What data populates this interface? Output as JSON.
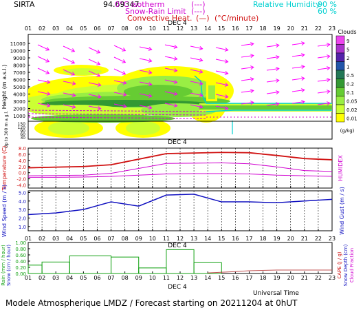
{
  "header": {
    "station": "SIRTA",
    "coords": "94.69347",
    "legend_isotherm": "0°C isotherm",
    "legend_isotherm_marker": "(---)",
    "legend_snow": "Snow-Rain Limit",
    "legend_snow_marker": "(---)",
    "legend_conv": "Convective Heat.",
    "legend_conv_marker": "(—)",
    "legend_conv_unit": "(°C/minute)",
    "legend_rh": "Relative Humidity",
    "rh_90": "90 %",
    "rh_60": "60 %"
  },
  "footer": {
    "text": "Modele Atmospherique LMDZ / Forecast starting on 20211204 at 0hUT",
    "universal_time": "Universal Time",
    "date_label": "DEC  4"
  },
  "colors": {
    "temperature": "#d01010",
    "humidex": "#d000d0",
    "wind": "#1010c0",
    "rain": "#10a010",
    "cape": "#c05050",
    "wind_arrow": "#ff00ff",
    "rh": "#00d0d0"
  },
  "clouds_scale": {
    "title": "Clouds",
    "unit": "(g/kg)",
    "levels": [
      "0.01",
      "0.02",
      "0.05",
      "0.1",
      "0.2",
      "0.5",
      "1",
      "2",
      "5",
      "9"
    ],
    "colors": [
      "#ffff00",
      "#ccff33",
      "#99ee44",
      "#66cc33",
      "#339933",
      "#227755",
      "#2255aa",
      "#5522aa",
      "#aa33cc",
      "#ee44ee"
    ]
  },
  "chart_data": [
    {
      "type": "heatmap",
      "name": "clouds",
      "ylabel": "Height (m a.s.l.)",
      "ylabel2": "Up to 300 m a.g.l.",
      "x_hours": [
        "01",
        "02",
        "03",
        "04",
        "05",
        "06",
        "07",
        "08",
        "09",
        "10",
        "11",
        "12",
        "13",
        "14",
        "15",
        "16",
        "17",
        "18",
        "19",
        "20",
        "21",
        "22",
        "23"
      ],
      "y_ticks": [
        "11000",
        "10000",
        "9000",
        "8000",
        "7000",
        "6000",
        "5000",
        "4000",
        "3000",
        "2000",
        "1000"
      ],
      "y_ticks_low": [
        "150",
        "120",
        "90",
        "60",
        "30"
      ]
    },
    {
      "type": "line",
      "name": "temperature",
      "ylabel": "Temperature (C)",
      "ylabel2": "HUMIDEX",
      "y_ticks": [
        "8.0",
        "6.0",
        "4.0",
        "2.0",
        "0.0",
        "-2.0",
        "-4.0"
      ],
      "ylim": [
        -5,
        8
      ],
      "series": [
        {
          "name": "Temperature",
          "x": [
            1,
            3,
            5,
            7,
            9,
            11,
            13,
            15,
            17,
            19,
            21,
            23
          ],
          "values": [
            1.6,
            1.8,
            2.0,
            2.6,
            4.4,
            6.2,
            6.4,
            6.6,
            6.5,
            5.6,
            4.6,
            4.2
          ]
        },
        {
          "name": "Humidex",
          "x": [
            1,
            3,
            5,
            7,
            9,
            11,
            13,
            15,
            17,
            19,
            21,
            23
          ],
          "values": [
            -1.0,
            -0.9,
            -0.8,
            -0.2,
            1.4,
            3.0,
            3.1,
            3.2,
            2.9,
            1.9,
            0.7,
            0.4
          ]
        },
        {
          "name": "",
          "x": [
            1,
            3,
            5,
            7,
            9,
            11,
            13,
            15,
            17,
            19,
            21,
            23
          ],
          "values": [
            -1.5,
            -1.5,
            -1.4,
            -1.2,
            -0.8,
            -0.4,
            -0.3,
            -0.3,
            -0.4,
            -0.8,
            -1.0,
            -1.2
          ]
        }
      ]
    },
    {
      "type": "line",
      "name": "wind",
      "ylabel": "Wind Speed (m / s)",
      "ylabel2": "Wind Gust (m / s)",
      "y_ticks": [
        "5.0",
        "4.0",
        "3.0",
        "2.0",
        "1.0"
      ],
      "ylim": [
        0.5,
        5.2
      ],
      "series": [
        {
          "name": "Wind Speed",
          "x": [
            1,
            3,
            5,
            7,
            9,
            11,
            13,
            15,
            17,
            19,
            21,
            23
          ],
          "values": [
            2.4,
            2.6,
            3.0,
            3.9,
            3.4,
            4.7,
            4.8,
            3.9,
            3.9,
            3.8,
            4.0,
            4.2
          ]
        }
      ]
    },
    {
      "type": "bar",
      "name": "rain",
      "ylabel": "Rain (mm / hour)",
      "ylabel_b": "Snow (cm / hour)",
      "ylabel2": "CAPE (J / g)",
      "ylabel2_b": "Snow Depth (cm)",
      "ylabel2_c": "Cloud Fraction",
      "y_ticks": [
        "1.00",
        "0.80",
        "0.60",
        "0.40",
        "0.20",
        "0.00"
      ],
      "ylim": [
        0,
        1
      ],
      "rain_steps": [
        {
          "x0": 1,
          "x1": 2,
          "value": 0.27
        },
        {
          "x0": 2,
          "x1": 4,
          "value": 0.37
        },
        {
          "x0": 4,
          "x1": 7,
          "value": 0.57
        },
        {
          "x0": 7,
          "x1": 9,
          "value": 0.53
        },
        {
          "x0": 9,
          "x1": 11,
          "value": 0.18
        },
        {
          "x0": 11,
          "x1": 13,
          "value": 0.77
        },
        {
          "x0": 13,
          "x1": 15,
          "value": 0.35
        },
        {
          "x0": 15,
          "x1": 23,
          "value": 0.0
        }
      ],
      "cape": {
        "x": [
          14,
          16,
          17,
          19,
          21,
          23
        ],
        "values": [
          0.02,
          0.06,
          0.09,
          0.11,
          0.11,
          0.11
        ]
      }
    }
  ]
}
